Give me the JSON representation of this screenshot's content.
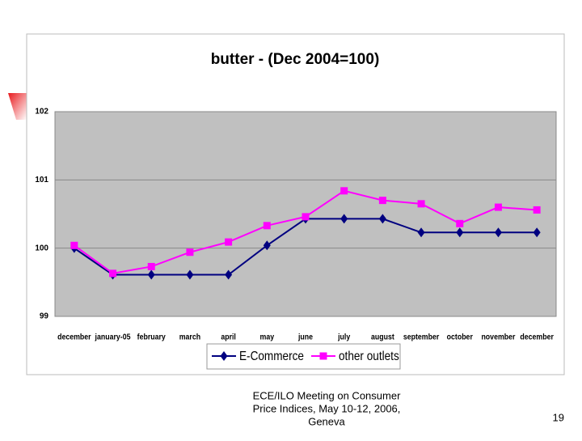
{
  "chart_data": {
    "type": "line",
    "title": "butter - (Dec 2004=100)",
    "categories": [
      "december",
      "january-05",
      "february",
      "march",
      "april",
      "may",
      "june",
      "july",
      "august",
      "september",
      "october",
      "november",
      "december"
    ],
    "series": [
      {
        "name": "E-Commerce",
        "color": "#000080",
        "marker": "diamond",
        "values": [
          100.0,
          99.61,
          99.61,
          99.61,
          99.61,
          100.04,
          100.43,
          100.43,
          100.43,
          100.23,
          100.23,
          100.23,
          100.23
        ]
      },
      {
        "name": "other outlets",
        "color": "#ff00ff",
        "marker": "square",
        "values": [
          100.04,
          99.63,
          99.73,
          99.94,
          100.09,
          100.33,
          100.46,
          100.84,
          100.7,
          100.65,
          100.36,
          100.6,
          100.56
        ]
      }
    ],
    "ylim": [
      99,
      102
    ],
    "yticks": [
      99,
      100,
      101,
      102
    ],
    "grid": true,
    "legend": "bottom"
  },
  "footer": {
    "lines": [
      "ECE/ILO Meeting on Consumer",
      "Price Indices, May 10-12, 2006,",
      "Geneva"
    ],
    "page_number": 19
  }
}
